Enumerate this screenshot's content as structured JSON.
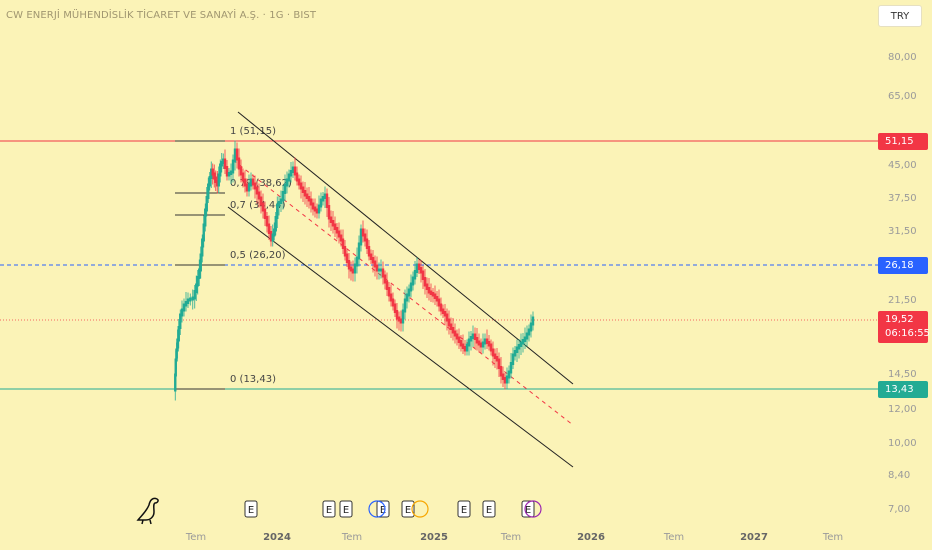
{
  "header": {
    "title": "CW ENERJİ MÜHENDİSLİK TİCARET VE SANAYİ A.Ş. · 1G · BIST",
    "currency": "TRY"
  },
  "colors": {
    "background": "#fbf3b7",
    "candle_up": "#22ab94",
    "candle_down": "#f23645",
    "resistance_line": "#f23645",
    "support_line": "#22ab94",
    "target_line": "#2962ff"
  },
  "price_labels": {
    "high": "51,15",
    "target": "26,18",
    "last": "19,52",
    "countdown": "06:16:55",
    "low": "13,43"
  },
  "chart_data": {
    "type": "candlestick",
    "symbol_exchange": "BIST",
    "interval": "1G",
    "scale": "log",
    "y_ticks": [
      "80,00",
      "65,00",
      "51,15",
      "45,00",
      "37,50",
      "31,50",
      "26,18",
      "21,50",
      "19,52",
      "14,50",
      "13,43",
      "12,00",
      "10,00",
      "8,40",
      "7,00"
    ],
    "x_ticks": [
      "Tem",
      "2024",
      "Tem",
      "2025",
      "Tem",
      "2026",
      "Tem",
      "2027",
      "Tem"
    ],
    "fibonacci": [
      {
        "label": "1 (51,15)",
        "level": 1,
        "price": 51.15
      },
      {
        "label": "0,79 (38,62)",
        "level": 0.79,
        "price": 38.62
      },
      {
        "label": "0,7 (34,44)",
        "level": 0.7,
        "price": 34.44
      },
      {
        "label": "0,5 (26,20)",
        "level": 0.5,
        "price": 26.2
      },
      {
        "label": "0 (13,43)",
        "level": 0,
        "price": 13.43
      }
    ],
    "horizontal_lines": [
      {
        "price": 51.15,
        "color": "#f23645"
      },
      {
        "price": 26.18,
        "color": "#2962ff",
        "style": "dashed"
      },
      {
        "price": 13.43,
        "color": "#22ab94"
      }
    ],
    "price_path": [
      [
        175,
        390
      ],
      [
        176,
        360
      ],
      [
        178,
        340
      ],
      [
        181,
        315
      ],
      [
        185,
        305
      ],
      [
        189,
        300
      ],
      [
        194,
        298
      ],
      [
        197,
        285
      ],
      [
        200,
        270
      ],
      [
        203,
        240
      ],
      [
        206,
        210
      ],
      [
        209,
        185
      ],
      [
        212,
        170
      ],
      [
        215,
        178
      ],
      [
        218,
        185
      ],
      [
        221,
        165
      ],
      [
        224,
        160
      ],
      [
        228,
        175
      ],
      [
        232,
        172
      ],
      [
        236,
        150
      ],
      [
        240,
        168
      ],
      [
        244,
        180
      ],
      [
        248,
        190
      ],
      [
        252,
        180
      ],
      [
        256,
        188
      ],
      [
        260,
        198
      ],
      [
        264,
        210
      ],
      [
        268,
        225
      ],
      [
        272,
        240
      ],
      [
        275,
        230
      ],
      [
        278,
        205
      ],
      [
        282,
        200
      ],
      [
        286,
        185
      ],
      [
        290,
        175
      ],
      [
        294,
        168
      ],
      [
        298,
        180
      ],
      [
        302,
        188
      ],
      [
        306,
        195
      ],
      [
        310,
        200
      ],
      [
        314,
        208
      ],
      [
        318,
        212
      ],
      [
        322,
        200
      ],
      [
        326,
        195
      ],
      [
        330,
        218
      ],
      [
        334,
        225
      ],
      [
        338,
        232
      ],
      [
        342,
        240
      ],
      [
        346,
        255
      ],
      [
        350,
        268
      ],
      [
        354,
        272
      ],
      [
        358,
        258
      ],
      [
        362,
        230
      ],
      [
        366,
        240
      ],
      [
        370,
        255
      ],
      [
        374,
        262
      ],
      [
        378,
        270
      ],
      [
        382,
        270
      ],
      [
        386,
        282
      ],
      [
        390,
        295
      ],
      [
        394,
        305
      ],
      [
        398,
        318
      ],
      [
        402,
        322
      ],
      [
        406,
        300
      ],
      [
        410,
        290
      ],
      [
        414,
        278
      ],
      [
        418,
        265
      ],
      [
        422,
        272
      ],
      [
        426,
        285
      ],
      [
        430,
        292
      ],
      [
        434,
        295
      ],
      [
        438,
        300
      ],
      [
        442,
        310
      ],
      [
        446,
        315
      ],
      [
        450,
        325
      ],
      [
        454,
        332
      ],
      [
        458,
        338
      ],
      [
        462,
        345
      ],
      [
        466,
        350
      ],
      [
        470,
        340
      ],
      [
        474,
        335
      ],
      [
        478,
        342
      ],
      [
        482,
        346
      ],
      [
        486,
        340
      ],
      [
        490,
        345
      ],
      [
        494,
        355
      ],
      [
        498,
        360
      ],
      [
        502,
        375
      ],
      [
        506,
        382
      ],
      [
        510,
        372
      ],
      [
        514,
        355
      ],
      [
        518,
        348
      ],
      [
        522,
        343
      ],
      [
        526,
        338
      ],
      [
        530,
        330
      ],
      [
        534,
        318
      ]
    ],
    "events": [
      "E",
      "E",
      "E",
      "E",
      "E",
      "E",
      "E",
      "E"
    ],
    "last_price": "19,52",
    "countdown": "06:16:55"
  }
}
